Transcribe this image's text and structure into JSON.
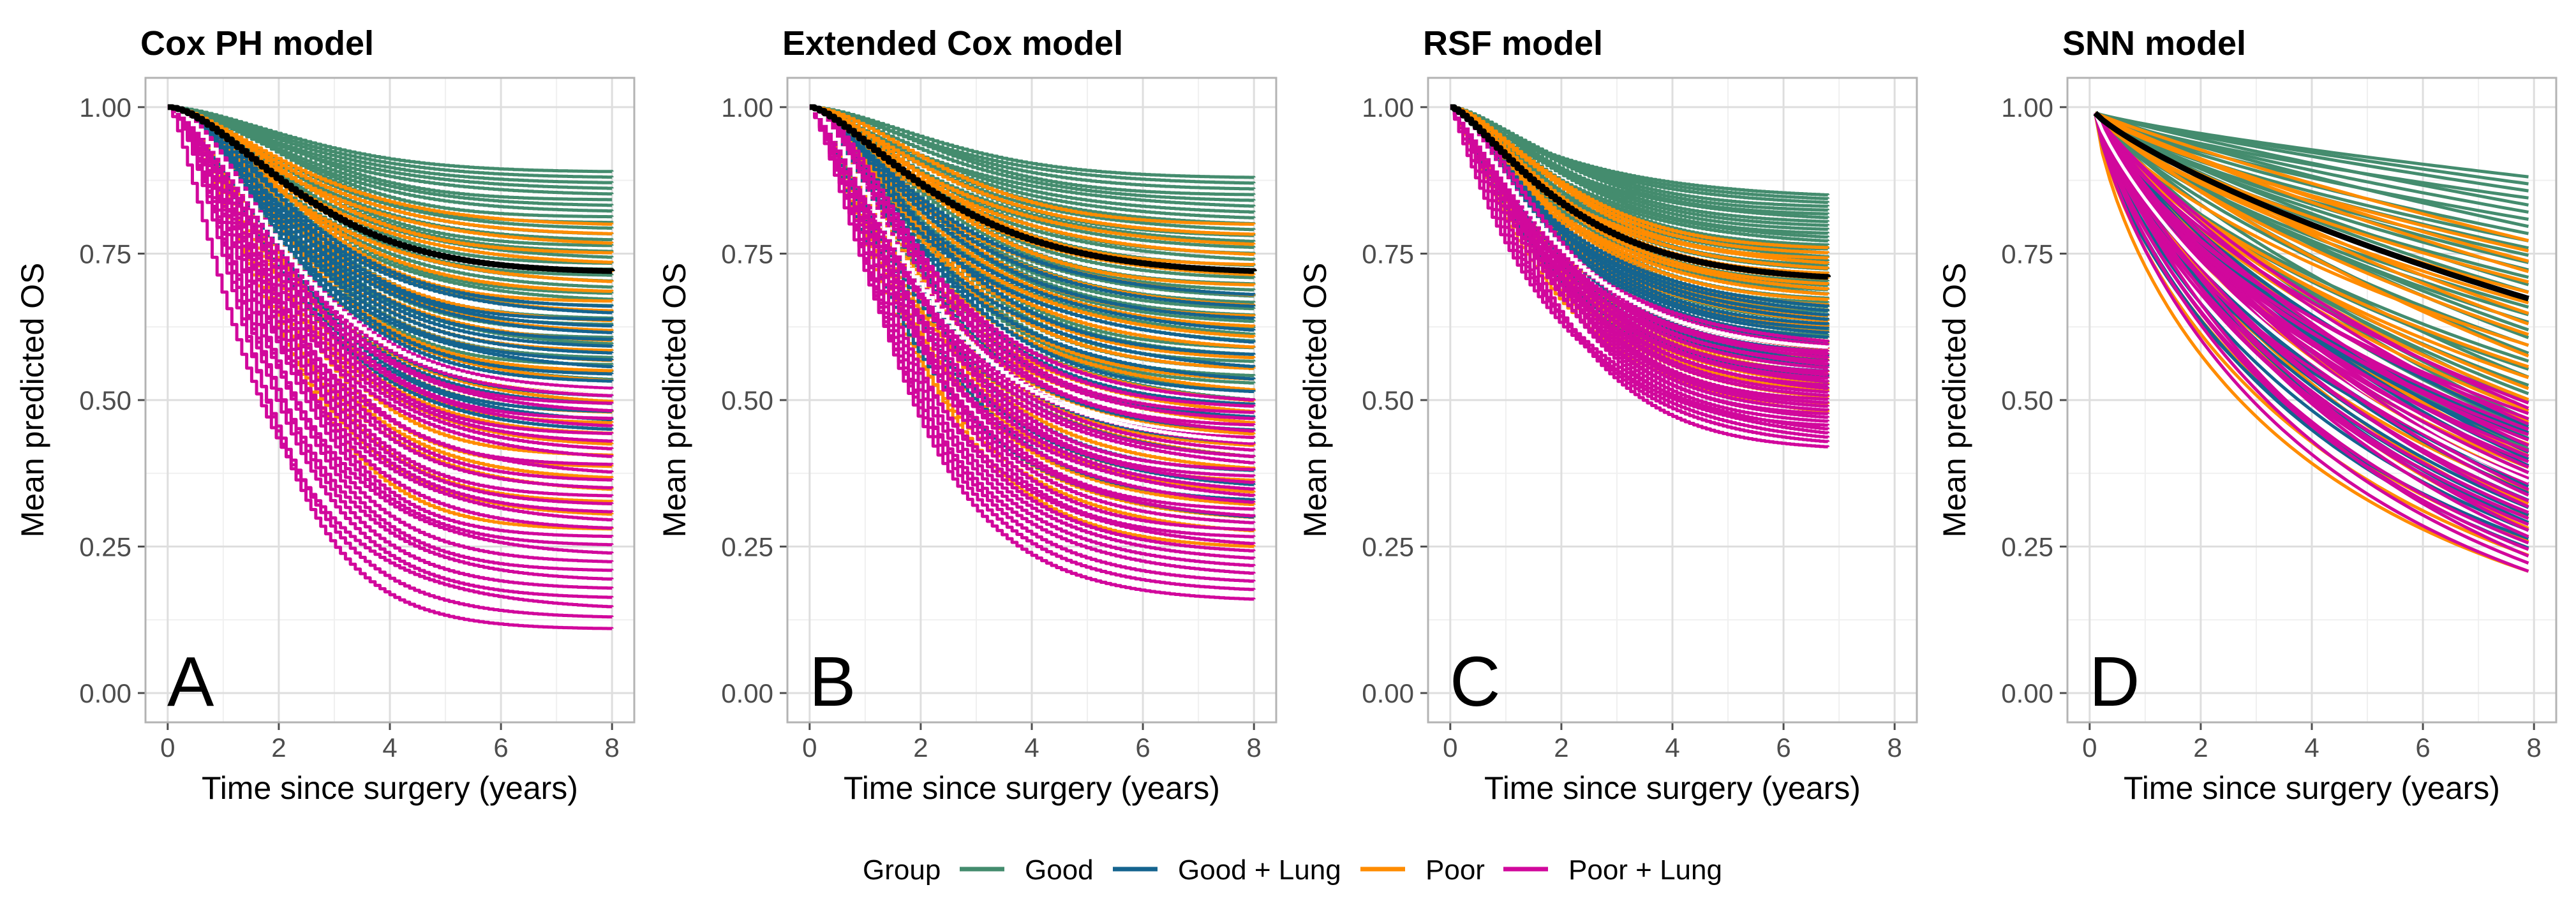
{
  "legend": {
    "title": "Group",
    "items": [
      {
        "label": "Good",
        "color": "#448c6e"
      },
      {
        "label": "Good + Lung",
        "color": "#15648f"
      },
      {
        "label": "Poor",
        "color": "#ff8c00"
      },
      {
        "label": "Poor + Lung",
        "color": "#d1089c"
      }
    ],
    "mean_color": "#000000"
  },
  "chart_data": [
    {
      "type": "line",
      "panel": "A",
      "title": "Cox PH model",
      "xlabel": "Time since surgery (years)",
      "ylabel": "Mean predicted OS",
      "xlim": [
        -0.4,
        8.4
      ],
      "ylim": [
        -0.05,
        1.05
      ],
      "xticks": [
        0,
        2,
        4,
        6,
        8
      ],
      "xtick_labels": [
        "0",
        "2",
        "4",
        "6",
        "8"
      ],
      "yticks": [
        0,
        0.25,
        0.5,
        0.75,
        1
      ],
      "ytick_labels": [
        "0.00",
        "0.25",
        "0.50",
        "0.75",
        "1.00"
      ],
      "curve_model": "step",
      "x_end": 8.0,
      "k_base": 0.22,
      "shape": 1.6,
      "mean_endpoint": 0.72,
      "endpoint_ranges": {
        "Good": [
          0.52,
          0.89
        ],
        "Good + Lung": [
          0.45,
          0.66
        ],
        "Poor": [
          0.28,
          0.8
        ],
        "Poor + Lung": [
          0.11,
          0.52
        ]
      }
    },
    {
      "type": "line",
      "panel": "B",
      "title": "Extended Cox model",
      "xlabel": "Time since surgery (years)",
      "ylabel": "Mean predicted OS",
      "xlim": [
        -0.4,
        8.4
      ],
      "ylim": [
        -0.05,
        1.05
      ],
      "xticks": [
        0,
        2,
        4,
        6,
        8
      ],
      "xtick_labels": [
        "0",
        "2",
        "4",
        "6",
        "8"
      ],
      "yticks": [
        0,
        0.25,
        0.5,
        0.75,
        1
      ],
      "ytick_labels": [
        "0.00",
        "0.25",
        "0.50",
        "0.75",
        "1.00"
      ],
      "curve_model": "step",
      "x_end": 8.0,
      "k_base": 0.26,
      "shape": 1.4,
      "mean_endpoint": 0.72,
      "endpoint_ranges": {
        "Good": [
          0.5,
          0.88
        ],
        "Good + Lung": [
          0.3,
          0.68
        ],
        "Poor": [
          0.25,
          0.8
        ],
        "Poor + Lung": [
          0.16,
          0.5
        ]
      }
    },
    {
      "type": "line",
      "panel": "C",
      "title": "RSF model",
      "xlabel": "Time since surgery (years)",
      "ylabel": "Mean predicted OS",
      "xlim": [
        -0.4,
        8.4
      ],
      "ylim": [
        -0.05,
        1.05
      ],
      "xticks": [
        0,
        2,
        4,
        6,
        8
      ],
      "xtick_labels": [
        "0",
        "2",
        "4",
        "6",
        "8"
      ],
      "yticks": [
        0,
        0.25,
        0.5,
        0.75,
        1
      ],
      "ytick_labels": [
        "0.00",
        "0.25",
        "0.50",
        "0.75",
        "1.00"
      ],
      "curve_model": "step",
      "x_end": 6.8,
      "k_base": 0.3,
      "shape": 1.3,
      "mean_endpoint": 0.71,
      "endpoint_ranges": {
        "Good": [
          0.6,
          0.85
        ],
        "Good + Lung": [
          0.52,
          0.66
        ],
        "Poor": [
          0.48,
          0.76
        ],
        "Poor + Lung": [
          0.42,
          0.6
        ]
      }
    },
    {
      "type": "line",
      "panel": "D",
      "title": "SNN model",
      "xlabel": "Time since surgery (years)",
      "ylabel": "Mean predicted OS",
      "xlim": [
        -0.4,
        8.4
      ],
      "ylim": [
        -0.05,
        1.05
      ],
      "xticks": [
        0,
        2,
        4,
        6,
        8
      ],
      "xtick_labels": [
        "0",
        "2",
        "4",
        "6",
        "8"
      ],
      "yticks": [
        0,
        0.25,
        0.5,
        0.75,
        1
      ],
      "ytick_labels": [
        "0.00",
        "0.25",
        "0.50",
        "0.75",
        "1.00"
      ],
      "curve_model": "smooth",
      "x_start": 0.1,
      "x_end": 7.9,
      "mean_endpoint": 0.68,
      "endpoint_ranges": {
        "Good": [
          0.42,
          0.89
        ],
        "Good + Lung": [
          0.25,
          0.46
        ],
        "Poor": [
          0.21,
          0.78
        ],
        "Poor + Lung": [
          0.21,
          0.5
        ]
      }
    }
  ]
}
